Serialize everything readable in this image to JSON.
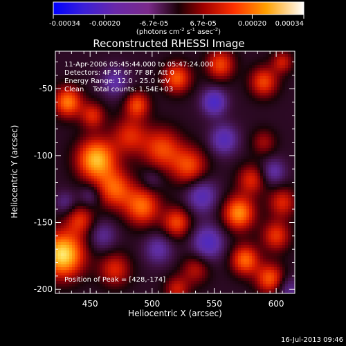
{
  "colorbar": {
    "ticks": [
      "-0.00034",
      "-0.00020",
      "-6.7e-05",
      "6.7e-05",
      "0.00020",
      "0.00034"
    ],
    "values": [
      -0.00034,
      -0.0002,
      -6.7e-05,
      6.7e-05,
      0.0002,
      0.00034
    ],
    "range": [
      -0.00034,
      0.00034
    ],
    "unit_label": "(photons cm",
    "unit_exp1": "-2",
    "unit_mid": " s",
    "unit_exp2": "-1",
    "unit_end": " asec",
    "unit_exp3": "-2",
    "unit_close": ")"
  },
  "chart_data": {
    "type": "heatmap",
    "title": "Reconstructed RHESSI Image",
    "xlabel": "Heliocentric X (arcsec)",
    "ylabel": "Heliocentric Y (arcsec)",
    "xlim": [
      422,
      615
    ],
    "ylim": [
      -203,
      -22
    ],
    "x_ticks": [
      450,
      500,
      550,
      600
    ],
    "y_ticks": [
      -50,
      -100,
      -150,
      -200
    ],
    "annotations": {
      "time_range": "11-Apr-2006 05:45:44.000 to 05:47:24.000",
      "detectors": "Detectors: 4F 5F 6F 7F 8F, Att 0",
      "energy": "Energy Range: 12.0 - 25.0 keV",
      "clean": "Clean    Total counts: 1.54E+03",
      "peak": "Position of Peak = [428,-174]"
    },
    "peak_position": [
      428,
      -174
    ],
    "blobs": [
      {
        "x": 428,
        "y": -174,
        "v": 1.0,
        "s": 12
      },
      {
        "x": 455,
        "y": -103,
        "v": 0.88,
        "s": 11
      },
      {
        "x": 432,
        "y": -60,
        "v": 0.7,
        "s": 8
      },
      {
        "x": 452,
        "y": -70,
        "v": 0.45,
        "s": 7
      },
      {
        "x": 482,
        "y": -85,
        "v": 0.45,
        "s": 10
      },
      {
        "x": 508,
        "y": -95,
        "v": 0.55,
        "s": 11
      },
      {
        "x": 530,
        "y": -108,
        "v": 0.55,
        "s": 10
      },
      {
        "x": 488,
        "y": -62,
        "v": 0.55,
        "s": 7
      },
      {
        "x": 520,
        "y": -42,
        "v": 0.6,
        "s": 8
      },
      {
        "x": 555,
        "y": -32,
        "v": 0.55,
        "s": 8
      },
      {
        "x": 590,
        "y": -45,
        "v": 0.55,
        "s": 8
      },
      {
        "x": 605,
        "y": -30,
        "v": 0.4,
        "s": 6
      },
      {
        "x": 470,
        "y": -125,
        "v": 0.6,
        "s": 10
      },
      {
        "x": 492,
        "y": -138,
        "v": 0.65,
        "s": 10
      },
      {
        "x": 520,
        "y": -150,
        "v": 0.55,
        "s": 8
      },
      {
        "x": 442,
        "y": -148,
        "v": 0.45,
        "s": 8
      },
      {
        "x": 570,
        "y": -143,
        "v": 0.75,
        "s": 9
      },
      {
        "x": 605,
        "y": -135,
        "v": 0.45,
        "s": 8
      },
      {
        "x": 600,
        "y": -160,
        "v": 0.5,
        "s": 8
      },
      {
        "x": 580,
        "y": -118,
        "v": 0.45,
        "s": 8
      },
      {
        "x": 590,
        "y": -90,
        "v": 0.3,
        "s": 7
      },
      {
        "x": 575,
        "y": -178,
        "v": 0.65,
        "s": 8
      },
      {
        "x": 595,
        "y": -192,
        "v": 0.6,
        "s": 8
      },
      {
        "x": 535,
        "y": -185,
        "v": 0.35,
        "s": 8
      },
      {
        "x": 470,
        "y": -185,
        "v": 0.45,
        "s": 9
      },
      {
        "x": 520,
        "y": -200,
        "v": 0.4,
        "s": 7
      },
      {
        "x": 550,
        "y": -60,
        "v": -0.55,
        "s": 7
      },
      {
        "x": 558,
        "y": -88,
        "v": -0.45,
        "s": 8
      },
      {
        "x": 540,
        "y": -130,
        "v": -0.45,
        "s": 9
      },
      {
        "x": 545,
        "y": -165,
        "v": -0.5,
        "s": 9
      },
      {
        "x": 505,
        "y": -170,
        "v": -0.35,
        "s": 8
      },
      {
        "x": 460,
        "y": -160,
        "v": -0.3,
        "s": 8
      },
      {
        "x": 450,
        "y": -130,
        "v": -0.25,
        "s": 6
      },
      {
        "x": 470,
        "y": -45,
        "v": -0.35,
        "s": 8
      },
      {
        "x": 598,
        "y": -112,
        "v": -0.35,
        "s": 7
      },
      {
        "x": 610,
        "y": -200,
        "v": -0.3,
        "s": 7
      },
      {
        "x": 500,
        "y": -118,
        "v": -0.2,
        "s": 6
      },
      {
        "x": 430,
        "y": -135,
        "v": -0.25,
        "s": 6
      }
    ]
  },
  "footer": {
    "timestamp": "16-Jul-2013 09:46"
  }
}
